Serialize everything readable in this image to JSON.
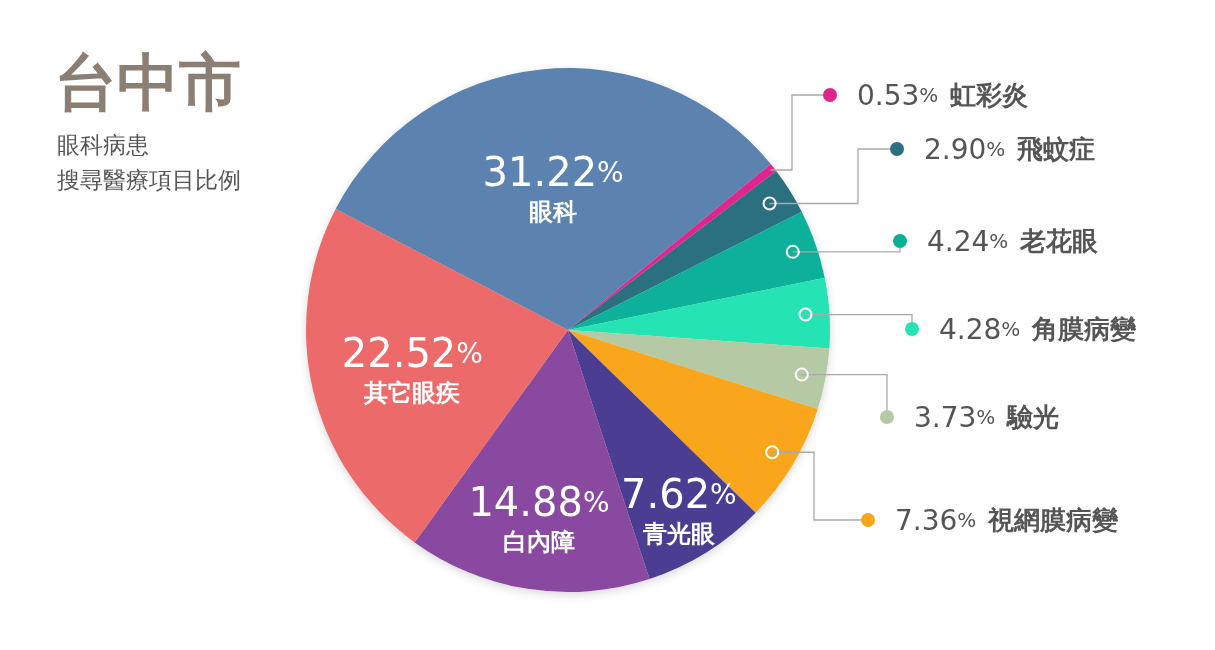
{
  "chart_data": {
    "type": "pie",
    "title": "台中市",
    "subtitle": "眼科病患搜尋醫療項目比例",
    "categories": [
      "眼科",
      "虹彩炎",
      "飛蚊症",
      "老花眼",
      "角膜病變",
      "驗光",
      "視網膜病變",
      "青光眼",
      "白內障",
      "其它眼疾"
    ],
    "values": [
      31.22,
      0.53,
      2.9,
      4.24,
      4.28,
      3.73,
      7.36,
      7.62,
      14.88,
      22.52
    ],
    "value_labels": [
      "31.22%",
      "0.53%",
      "2.90%",
      "4.24%",
      "4.28%",
      "3.73%",
      "7.36%",
      "7.62%",
      "14.88%",
      "22.52%"
    ],
    "colors": [
      "#5b82b0",
      "#e0268e",
      "#2a7080",
      "#0bb098",
      "#27e3b3",
      "#b5caa4",
      "#f9a61b",
      "#4b3d92",
      "#8a4aa0",
      "#ec6a6a"
    ]
  }
}
